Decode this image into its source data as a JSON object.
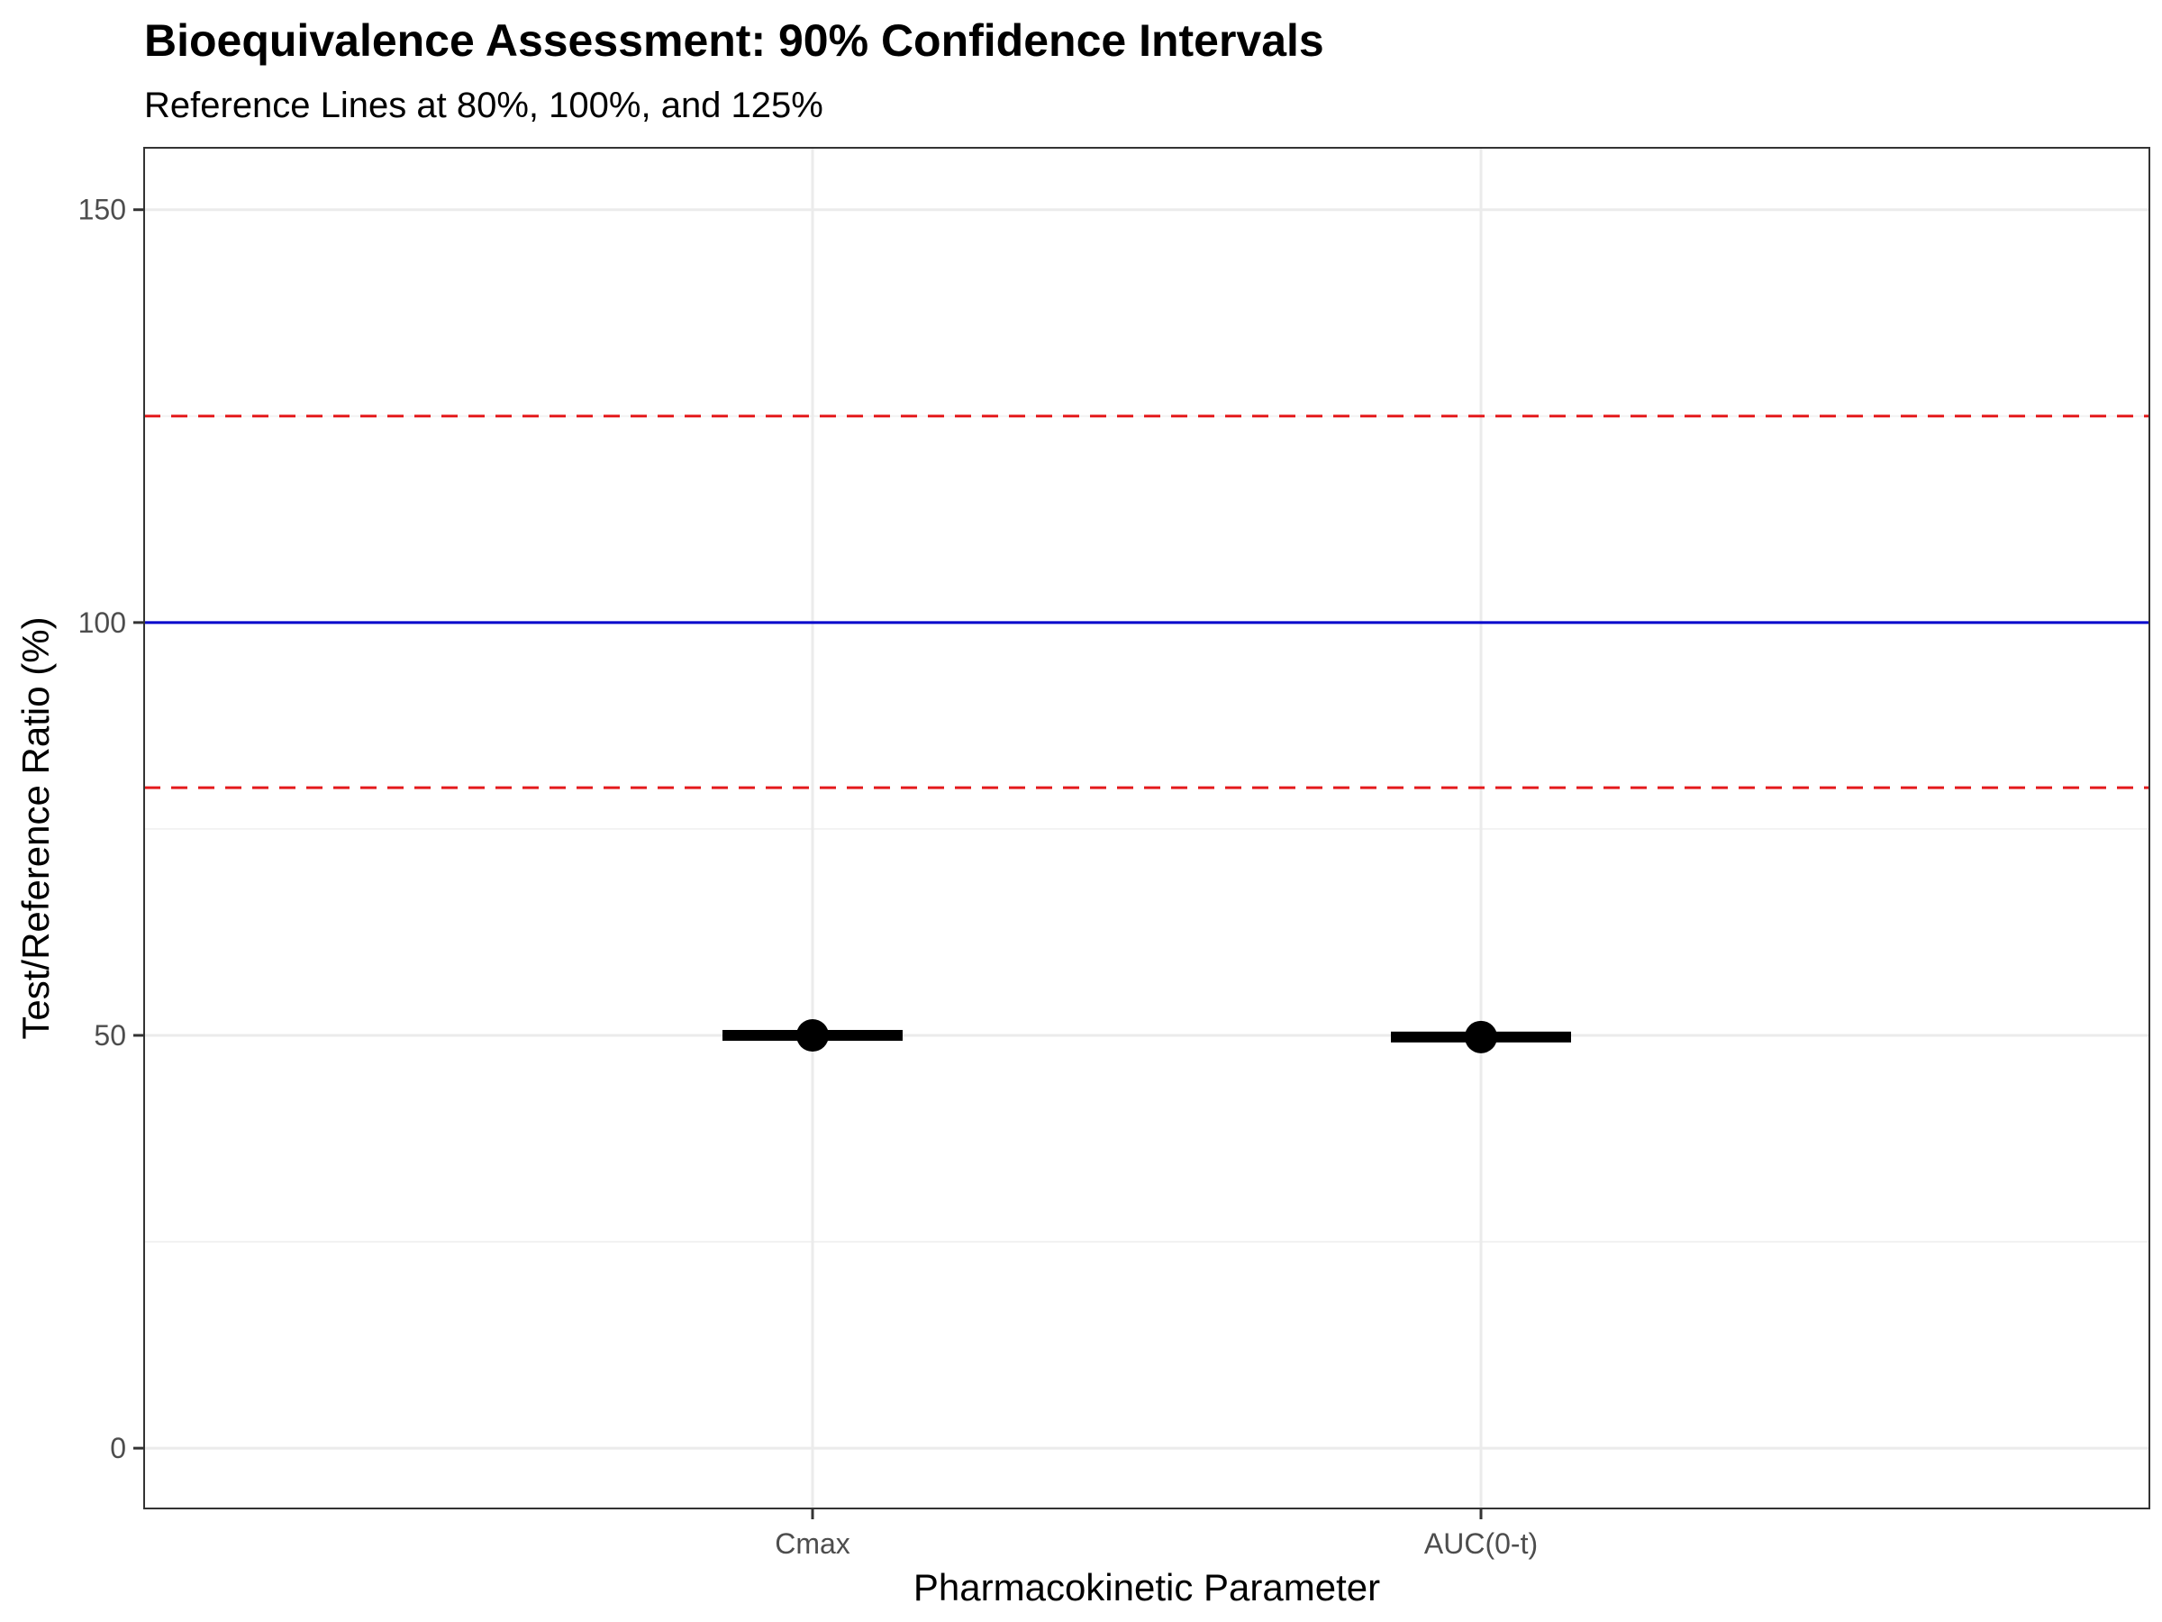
{
  "chart_data": {
    "type": "scatter",
    "title": "Bioequivalence Assessment: 90% Confidence Intervals",
    "subtitle": "Reference Lines at 80%, 100%, and 125%",
    "xlabel": "Pharmacokinetic Parameter",
    "ylabel": "Test/Reference Ratio (%)",
    "categories": [
      "Cmax",
      "AUC(0-t)"
    ],
    "ylim": [
      -7.3,
      157.5
    ],
    "yticks": [
      0,
      50,
      100,
      150
    ],
    "ytick_labels": [
      "0",
      "50",
      "100",
      "150"
    ],
    "grid": true,
    "points": [
      {
        "category": "Cmax",
        "estimate": 50.0,
        "lower": 49.7,
        "upper": 50.3
      },
      {
        "category": "AUC(0-t)",
        "estimate": 49.8,
        "lower": 49.5,
        "upper": 50.1
      }
    ],
    "reference_lines": [
      {
        "value": 80,
        "color": "#e41a1c",
        "style": "dashed"
      },
      {
        "value": 100,
        "color": "#0000cc",
        "style": "solid"
      },
      {
        "value": 125,
        "color": "#e41a1c",
        "style": "dashed"
      }
    ],
    "colors": {
      "point": "#000000",
      "grid_major": "#ebebeb",
      "grid_minor": "#f2f2f2",
      "panel_border": "#333333",
      "tick_label": "#4d4d4d"
    }
  }
}
